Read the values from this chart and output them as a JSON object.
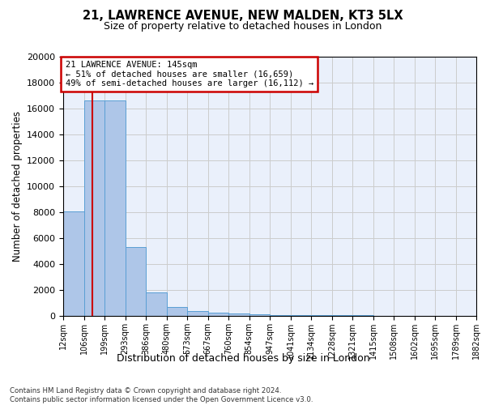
{
  "title": "21, LAWRENCE AVENUE, NEW MALDEN, KT3 5LX",
  "subtitle": "Size of property relative to detached houses in London",
  "xlabel": "Distribution of detached houses by size in London",
  "ylabel": "Number of detached properties",
  "bar_color": "#aec6e8",
  "bar_edge_color": "#5a9fd4",
  "grid_color": "#cccccc",
  "background_color": "#eaf0fb",
  "annotation_text": "21 LAWRENCE AVENUE: 145sqm\n← 51% of detached houses are smaller (16,659)\n49% of semi-detached houses are larger (16,112) →",
  "annotation_box_color": "#cc0000",
  "vline_color": "#cc0000",
  "property_size": 145,
  "footnote": "Contains HM Land Registry data © Crown copyright and database right 2024.\nContains public sector information licensed under the Open Government Licence v3.0.",
  "bin_edges": [
    12,
    106,
    199,
    293,
    386,
    480,
    573,
    667,
    760,
    854,
    947,
    1041,
    1134,
    1228,
    1321,
    1415,
    1508,
    1602,
    1695,
    1789,
    1882
  ],
  "bar_heights": [
    8050,
    16650,
    16650,
    5300,
    1800,
    700,
    350,
    220,
    160,
    110,
    80,
    60,
    55,
    45,
    35,
    30,
    25,
    22,
    18,
    15
  ],
  "tick_labels": [
    "12sqm",
    "106sqm",
    "199sqm",
    "293sqm",
    "386sqm",
    "480sqm",
    "573sqm",
    "667sqm",
    "760sqm",
    "854sqm",
    "947sqm",
    "1041sqm",
    "1134sqm",
    "1228sqm",
    "1321sqm",
    "1415sqm",
    "1508sqm",
    "1602sqm",
    "1695sqm",
    "1789sqm",
    "1882sqm"
  ],
  "ylim": [
    0,
    20000
  ],
  "yticks": [
    0,
    2000,
    4000,
    6000,
    8000,
    10000,
    12000,
    14000,
    16000,
    18000,
    20000
  ]
}
